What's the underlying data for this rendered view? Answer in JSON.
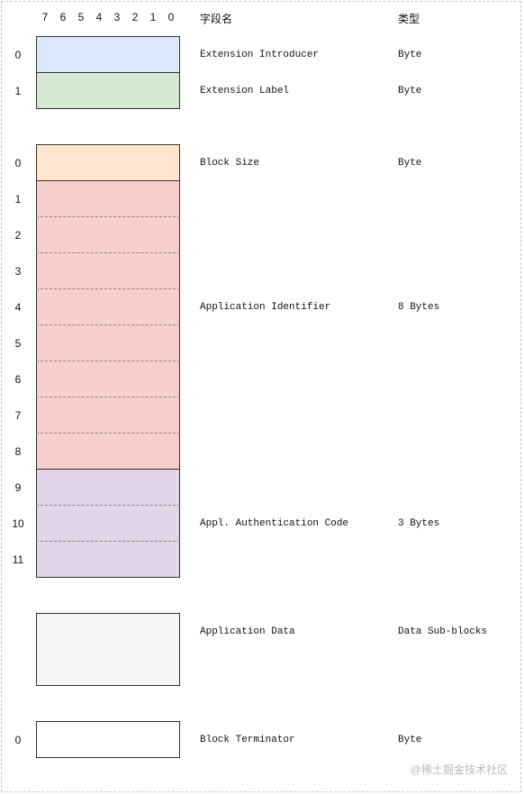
{
  "bits": [
    "7",
    "6",
    "5",
    "4",
    "3",
    "2",
    "1",
    "0"
  ],
  "headers": {
    "field_name": "字段名",
    "type": "类型"
  },
  "colors": {
    "intro": "#dae8fc",
    "label": "#d5e8d4",
    "block_size": "#ffe6cc",
    "app_id": "#f8cecc",
    "auth_code": "#e1d5e7",
    "app_data": "#f5f5f5",
    "terminator": "#ffffff"
  },
  "rows": {
    "extension_introducer": {
      "index": "0",
      "name": "Extension Introducer",
      "type": "Byte"
    },
    "extension_label": {
      "index": "1",
      "name": "Extension Label",
      "type": "Byte"
    },
    "block_size": {
      "index": "0",
      "name": "Block Size",
      "type": "Byte"
    },
    "application_identifier": {
      "indices": [
        "1",
        "2",
        "3",
        "4",
        "5",
        "6",
        "7",
        "8"
      ],
      "name": "Application Identifier",
      "type": "8 Bytes"
    },
    "auth_code": {
      "indices": [
        "9",
        "10",
        "11"
      ],
      "name": "Appl. Authentication Code",
      "type": "3 Bytes"
    },
    "application_data": {
      "name": "Application Data",
      "type": "Data Sub-blocks"
    },
    "block_terminator": {
      "index": "0",
      "name": "Block Terminator",
      "type": "Byte"
    }
  },
  "watermark": "@稀土掘金技术社区"
}
